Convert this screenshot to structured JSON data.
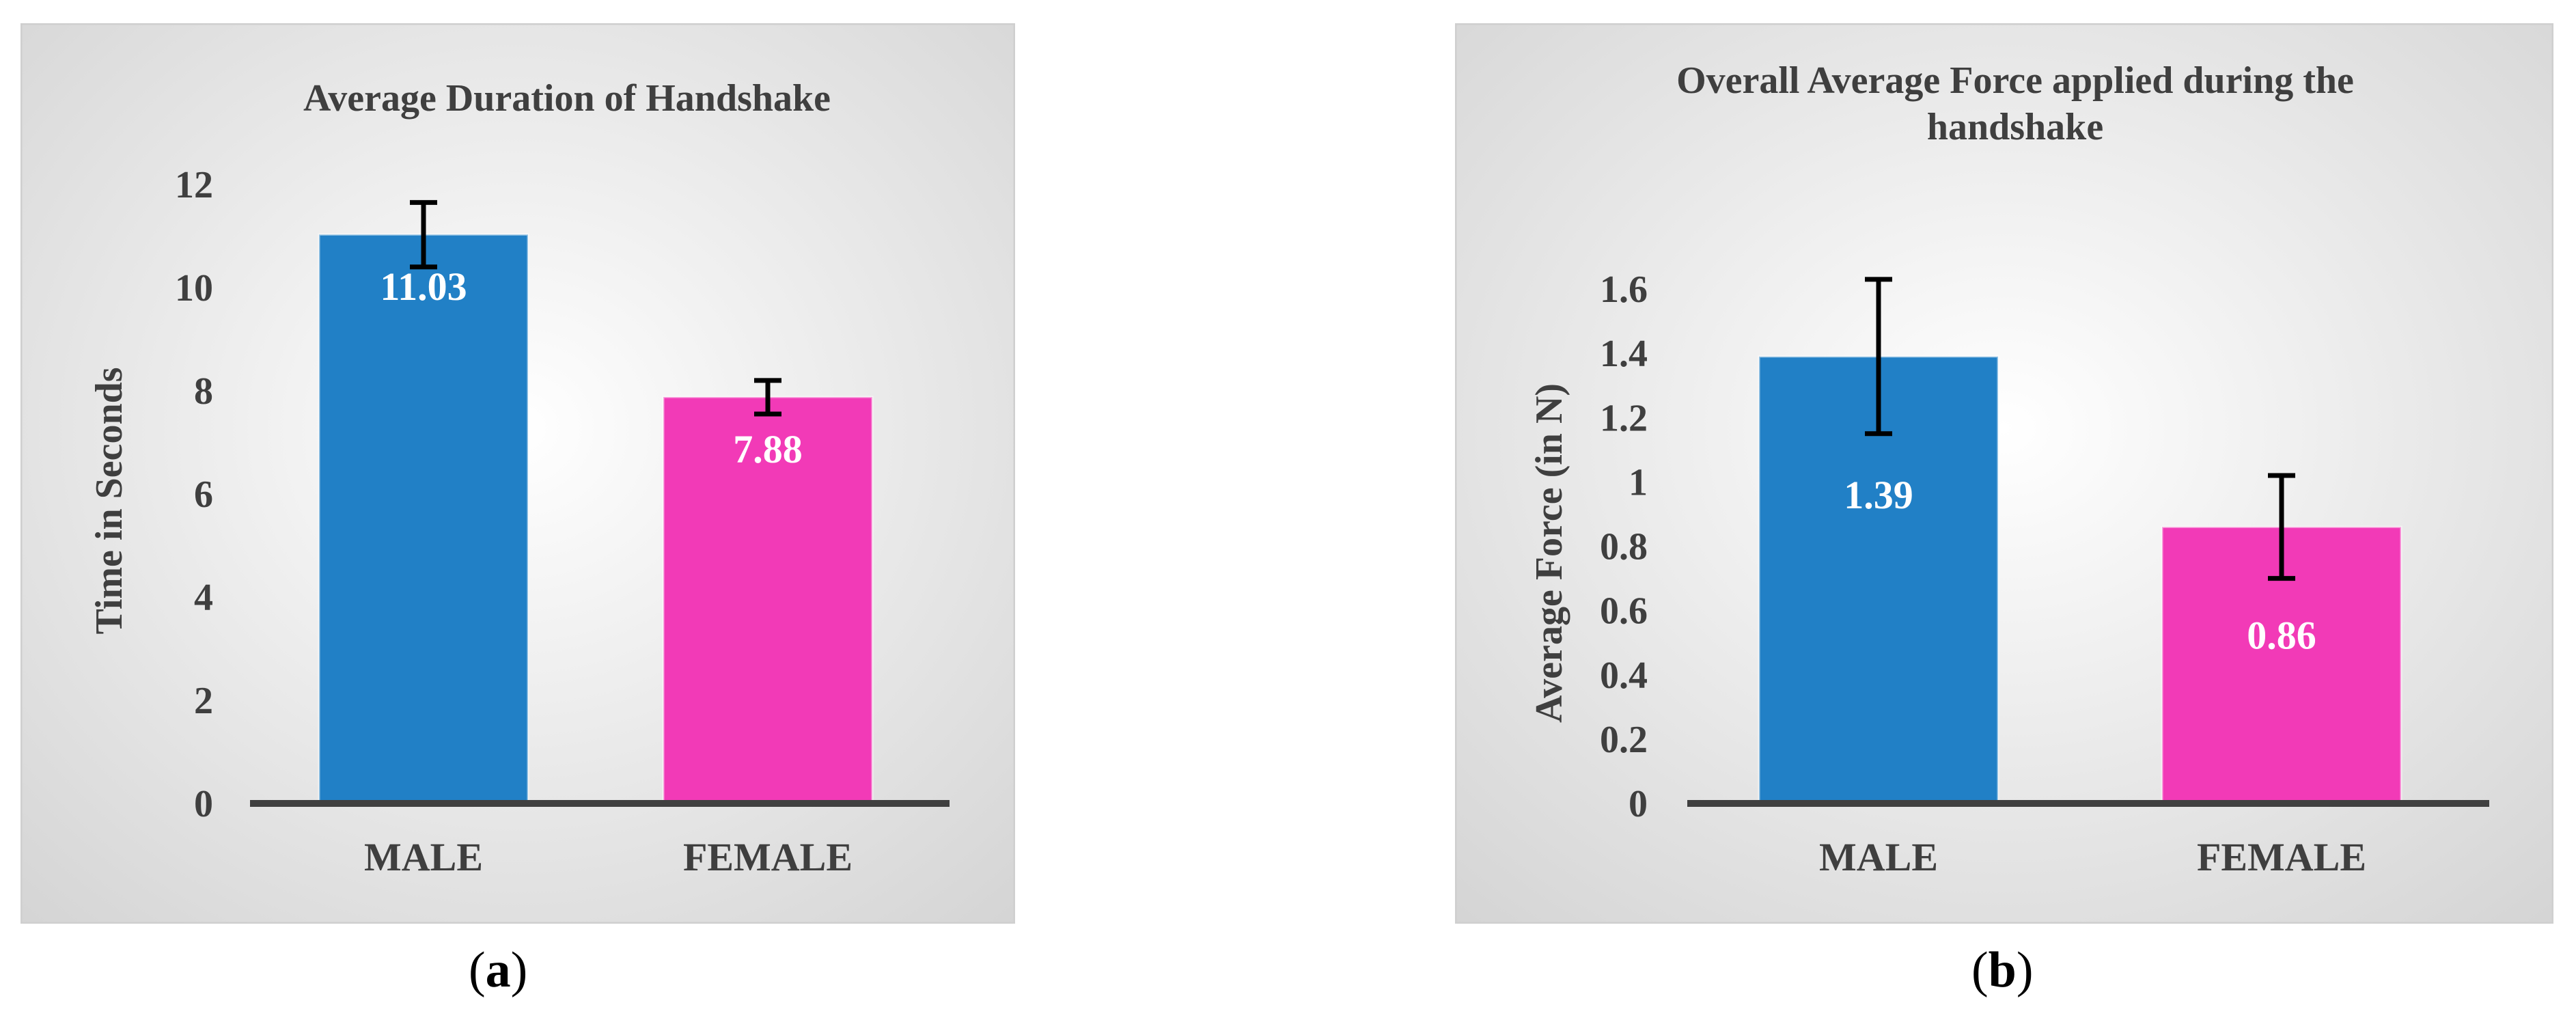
{
  "chart_data": [
    {
      "id": "a",
      "type": "bar",
      "title": "Average Duration of Handshake",
      "title_lines": [
        "Average Duration of Handshake"
      ],
      "categories": [
        "MALE",
        "FEMALE"
      ],
      "values": [
        11.03,
        7.88
      ],
      "data_labels": [
        "11.03",
        "7.88"
      ],
      "error_bars": [
        {
          "low": 10.4,
          "high": 11.65
        },
        {
          "low": 7.55,
          "high": 8.2
        }
      ],
      "colors": [
        "#2180c6",
        "#f23ab7"
      ],
      "xlabel": "",
      "ylabel": "Time in Seconds",
      "ylim": [
        0,
        12
      ],
      "yticks": [
        0,
        2,
        4,
        6,
        8,
        10,
        12
      ],
      "ytick_labels": [
        "0",
        "2",
        "4",
        "6",
        "8",
        "10",
        "12"
      ],
      "grid": false,
      "legend": "none"
    },
    {
      "id": "b",
      "type": "bar",
      "title": "Overall Average Force applied during the handshake",
      "title_lines": [
        "Overall Average Force applied during the",
        "handshake"
      ],
      "categories": [
        "MALE",
        "FEMALE"
      ],
      "values": [
        1.39,
        0.86
      ],
      "data_labels": [
        "1.39",
        "0.86"
      ],
      "error_bars": [
        {
          "low": 1.15,
          "high": 1.63
        },
        {
          "low": 0.7,
          "high": 1.02
        }
      ],
      "colors": [
        "#2180c6",
        "#f23ab7"
      ],
      "xlabel": "",
      "ylabel": "Average Force (in N)",
      "ylim": [
        0,
        1.6
      ],
      "yticks": [
        0,
        0.2,
        0.4,
        0.6,
        0.8,
        1.0,
        1.2,
        1.4,
        1.6
      ],
      "ytick_labels": [
        "0",
        "0.2",
        "0.4",
        "0.6",
        "0.8",
        "1",
        "1.2",
        "1.4",
        "1.6"
      ],
      "grid": false,
      "legend": "none"
    }
  ],
  "captions": {
    "a": "a",
    "b": "b"
  }
}
